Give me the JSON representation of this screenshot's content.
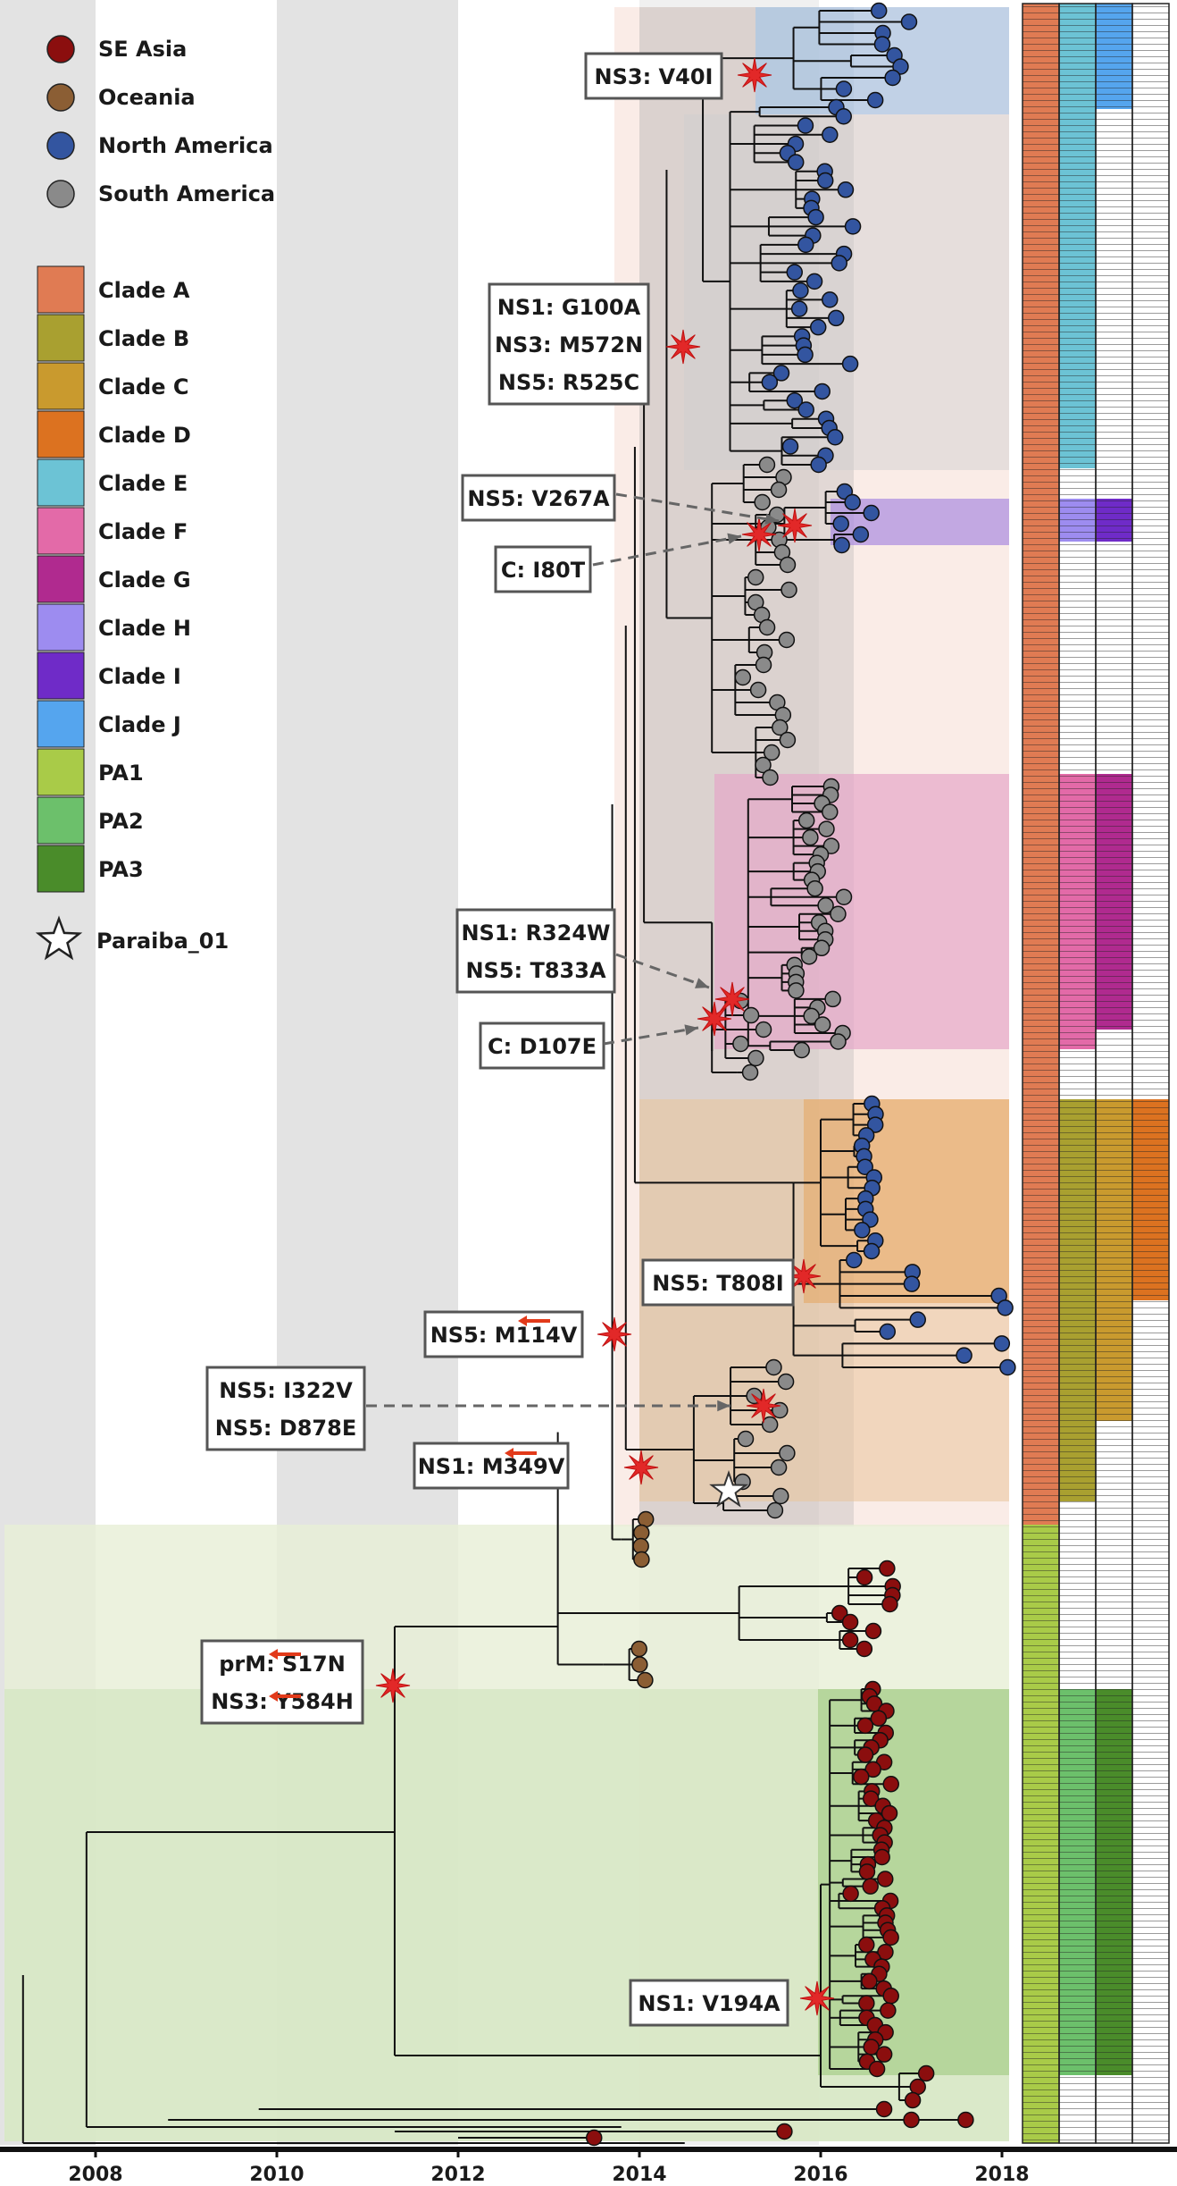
{
  "chart_data": {
    "type": "phylogenetic-tree",
    "x_axis": {
      "ticks": [
        "2008",
        "2010",
        "2012",
        "2014",
        "2016",
        "2018"
      ],
      "range": [
        2007,
        2018.2
      ]
    },
    "legend_regions": [
      {
        "label": "SE Asia",
        "color": "#8b0e0e"
      },
      {
        "label": "Oceania",
        "color": "#8b5e34"
      },
      {
        "label": "North America",
        "color": "#3355a0"
      },
      {
        "label": "South America",
        "color": "#8a8a8a"
      }
    ],
    "legend_clades": [
      {
        "label": "Clade A",
        "color": "#e07b53"
      },
      {
        "label": "Clade B",
        "color": "#a9a030"
      },
      {
        "label": "Clade C",
        "color": "#c99a2e"
      },
      {
        "label": "Clade D",
        "color": "#dc7220"
      },
      {
        "label": "Clade E",
        "color": "#6cc3d5"
      },
      {
        "label": "Clade F",
        "color": "#e36aa8"
      },
      {
        "label": "Clade G",
        "color": "#b02a8f"
      },
      {
        "label": "Clade H",
        "color": "#9d8cf0"
      },
      {
        "label": "Clade I",
        "color": "#6f2bc8"
      },
      {
        "label": "Clade J",
        "color": "#55a5ee"
      },
      {
        "label": "PA1",
        "color": "#a9cb48"
      },
      {
        "label": "PA2",
        "color": "#6cc06b"
      },
      {
        "label": "PA3",
        "color": "#4a8c2a"
      }
    ],
    "paraiba_label": "Paraiba_01",
    "mutations": [
      {
        "lines": [
          "NS3: V40I"
        ],
        "year": 2015.3
      },
      {
        "lines": [
          "NS1: G100A",
          "NS3: M572N",
          "NS5: R525C"
        ],
        "year": 2014.5
      },
      {
        "lines": [
          "NS5: V267A"
        ],
        "year": 2015.7
      },
      {
        "lines": [
          "C: I80T"
        ],
        "year": 2015.3
      },
      {
        "lines": [
          "NS1: R324W",
          "NS5: T833A"
        ],
        "year": 2015.1
      },
      {
        "lines": [
          "C: D107E"
        ],
        "year": 2014.9
      },
      {
        "lines": [
          "NS5: T808I"
        ],
        "year": 2015.8
      },
      {
        "lines": [
          "NS5: M114V"
        ],
        "year": 2013.7
      },
      {
        "lines": [
          "NS5: I322V",
          "NS5: D878E"
        ],
        "year": 2014.9
      },
      {
        "lines": [
          "NS1: M349V"
        ],
        "year": 2014.0
      },
      {
        "lines": [
          "prM: S17N",
          "NS3: Y584H"
        ],
        "year": 2011.3
      },
      {
        "lines": [
          "NS1: V194A"
        ],
        "year": 2016.0
      }
    ],
    "reversion_markers": [
      "NS5: M114V",
      "NS1: M349V",
      "prM: S17N",
      "NS3: Y584H"
    ]
  }
}
